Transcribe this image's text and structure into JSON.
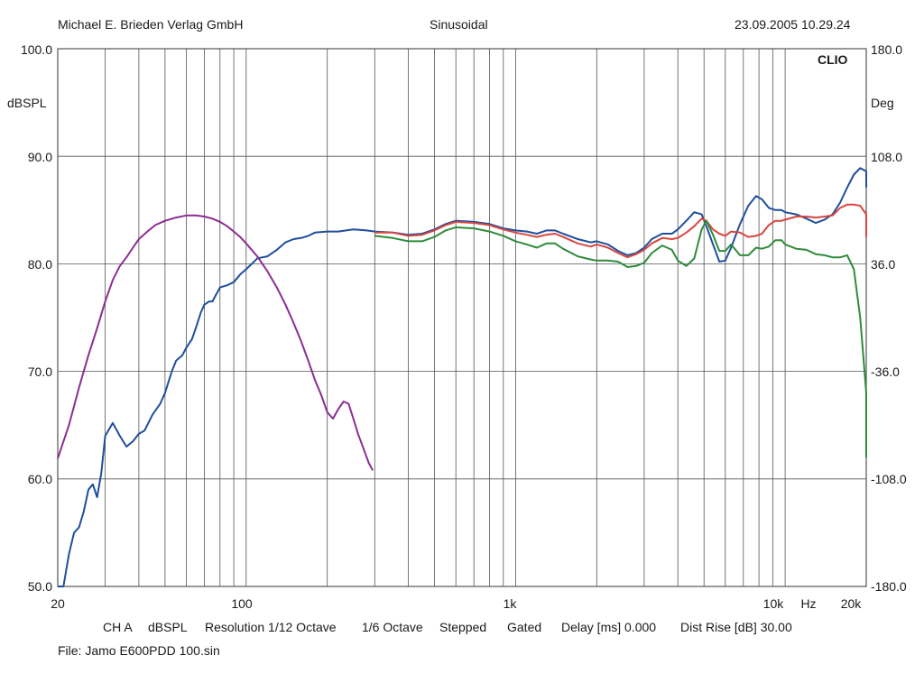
{
  "header": {
    "publisher": "Michael E. Brieden Verlag GmbH",
    "signal": "Sinusoidal",
    "timestamp": "23.09.2005 10.29.24"
  },
  "brand": "CLIO",
  "left_axis": {
    "unit": "dBSPL",
    "ticks": [
      "100.0",
      "90.0",
      "80.0",
      "70.0",
      "60.0",
      "50.0"
    ]
  },
  "right_axis": {
    "unit": "Deg",
    "ticks": [
      "180.0",
      "108.0",
      "36.0",
      "-36.0",
      "-108.0",
      "-180.0"
    ]
  },
  "x_axis": {
    "ticks": [
      "20",
      "100",
      "1k",
      "10k",
      "Hz",
      "20k"
    ]
  },
  "footer": {
    "channel": "CH A",
    "unit": "dBSPL",
    "resolution": "Resolution 1/12 Octave",
    "smoothing": "1/6 Octave",
    "mode": "Stepped",
    "gated": "Gated",
    "delay": "Delay [ms] 0.000",
    "dist_rise": "Dist Rise [dB] 30.00",
    "file": "File: Jamo E600PDD 100.sin"
  },
  "chart_data": {
    "type": "line",
    "x_scale": "log",
    "xlim": [
      20,
      20000
    ],
    "ylim": [
      50,
      100
    ],
    "y2lim": [
      -180,
      180
    ],
    "grid": true,
    "series": [
      {
        "color": "#1f4e9c",
        "points": [
          [
            20,
            48
          ],
          [
            21,
            50
          ],
          [
            22,
            53
          ],
          [
            23,
            55
          ],
          [
            24,
            55.5
          ],
          [
            25,
            57
          ],
          [
            26,
            59
          ],
          [
            27,
            59.5
          ],
          [
            28,
            58.3
          ],
          [
            29,
            60.5
          ],
          [
            30,
            64
          ],
          [
            32,
            65.2
          ],
          [
            34,
            64
          ],
          [
            36,
            63
          ],
          [
            38,
            63.5
          ],
          [
            40,
            64.2
          ],
          [
            42,
            64.5
          ],
          [
            45,
            66
          ],
          [
            48,
            67
          ],
          [
            50,
            68
          ],
          [
            53,
            70
          ],
          [
            55,
            71
          ],
          [
            58,
            71.5
          ],
          [
            60,
            72.2
          ],
          [
            63,
            73
          ],
          [
            65,
            74
          ],
          [
            68,
            75.5
          ],
          [
            70,
            76.2
          ],
          [
            73,
            76.5
          ],
          [
            75,
            76.5
          ],
          [
            78,
            77.3
          ],
          [
            80,
            77.8
          ],
          [
            85,
            78
          ],
          [
            90,
            78.3
          ],
          [
            95,
            79
          ],
          [
            100,
            79.5
          ],
          [
            105,
            80
          ],
          [
            110,
            80.5
          ],
          [
            115,
            80.6
          ],
          [
            120,
            80.7
          ],
          [
            130,
            81.3
          ],
          [
            140,
            82
          ],
          [
            150,
            82.3
          ],
          [
            160,
            82.4
          ],
          [
            170,
            82.6
          ],
          [
            180,
            82.9
          ],
          [
            200,
            83
          ],
          [
            220,
            83
          ],
          [
            250,
            83.2
          ],
          [
            280,
            83.1
          ],
          [
            300,
            83.0
          ],
          [
            350,
            82.9
          ],
          [
            400,
            82.7
          ],
          [
            450,
            82.8
          ],
          [
            500,
            83.2
          ],
          [
            550,
            83.7
          ],
          [
            600,
            84.0
          ],
          [
            700,
            83.9
          ],
          [
            800,
            83.7
          ],
          [
            900,
            83.3
          ],
          [
            1000,
            83.1
          ],
          [
            1100,
            83.0
          ],
          [
            1200,
            82.8
          ],
          [
            1300,
            83.1
          ],
          [
            1400,
            83.1
          ],
          [
            1500,
            82.8
          ],
          [
            1700,
            82.3
          ],
          [
            1900,
            82.0
          ],
          [
            2000,
            82.1
          ],
          [
            2200,
            81.8
          ],
          [
            2400,
            81.2
          ],
          [
            2600,
            80.8
          ],
          [
            2800,
            81.0
          ],
          [
            3000,
            81.5
          ],
          [
            3200,
            82.3
          ],
          [
            3500,
            82.8
          ],
          [
            3800,
            82.8
          ],
          [
            4000,
            83.2
          ],
          [
            4300,
            84.0
          ],
          [
            4600,
            84.8
          ],
          [
            4900,
            84.6
          ],
          [
            5100,
            83.5
          ],
          [
            5400,
            81.8
          ],
          [
            5700,
            80.2
          ],
          [
            6000,
            80.3
          ],
          [
            6300,
            81.5
          ],
          [
            6800,
            83.7
          ],
          [
            7300,
            85.4
          ],
          [
            7800,
            86.3
          ],
          [
            8200,
            86.0
          ],
          [
            8700,
            85.2
          ],
          [
            9200,
            85.0
          ],
          [
            9700,
            85.0
          ],
          [
            10000,
            84.8
          ],
          [
            11000,
            84.6
          ],
          [
            12000,
            84.2
          ],
          [
            13000,
            83.8
          ],
          [
            14000,
            84.1
          ],
          [
            15000,
            84.6
          ],
          [
            16000,
            85.7
          ],
          [
            17000,
            87.1
          ],
          [
            18000,
            88.3
          ],
          [
            19000,
            88.9
          ],
          [
            20000,
            88.6
          ],
          [
            21000,
            87.8
          ],
          [
            22000,
            87.1
          ]
        ]
      },
      {
        "color": "#d9463f",
        "points": [
          [
            300,
            82.9
          ],
          [
            350,
            82.9
          ],
          [
            400,
            82.6
          ],
          [
            450,
            82.7
          ],
          [
            500,
            83.1
          ],
          [
            550,
            83.6
          ],
          [
            600,
            83.9
          ],
          [
            700,
            83.8
          ],
          [
            800,
            83.6
          ],
          [
            900,
            83.2
          ],
          [
            1000,
            82.9
          ],
          [
            1100,
            82.7
          ],
          [
            1200,
            82.5
          ],
          [
            1300,
            82.7
          ],
          [
            1400,
            82.8
          ],
          [
            1500,
            82.5
          ],
          [
            1700,
            81.9
          ],
          [
            1900,
            81.6
          ],
          [
            2000,
            81.8
          ],
          [
            2200,
            81.5
          ],
          [
            2400,
            81.0
          ],
          [
            2600,
            80.6
          ],
          [
            2800,
            80.9
          ],
          [
            3000,
            81.3
          ],
          [
            3200,
            81.9
          ],
          [
            3500,
            82.4
          ],
          [
            3800,
            82.3
          ],
          [
            4000,
            82.4
          ],
          [
            4300,
            82.9
          ],
          [
            4600,
            83.5
          ],
          [
            4900,
            84.2
          ],
          [
            5100,
            84.0
          ],
          [
            5400,
            83.2
          ],
          [
            5700,
            82.8
          ],
          [
            6000,
            82.6
          ],
          [
            6300,
            83.0
          ],
          [
            6800,
            82.9
          ],
          [
            7300,
            82.5
          ],
          [
            7800,
            82.6
          ],
          [
            8200,
            82.8
          ],
          [
            8700,
            83.6
          ],
          [
            9200,
            84.0
          ],
          [
            9700,
            84.0
          ],
          [
            10000,
            84.1
          ],
          [
            11000,
            84.4
          ],
          [
            12000,
            84.4
          ],
          [
            13000,
            84.3
          ],
          [
            14000,
            84.4
          ],
          [
            15000,
            84.5
          ],
          [
            16000,
            85.2
          ],
          [
            17000,
            85.5
          ],
          [
            18000,
            85.5
          ],
          [
            19000,
            85.4
          ],
          [
            20000,
            84.6
          ],
          [
            21000,
            83.6
          ],
          [
            22000,
            82.5
          ]
        ]
      },
      {
        "color": "#2e8b3a",
        "points": [
          [
            300,
            82.6
          ],
          [
            350,
            82.4
          ],
          [
            400,
            82.1
          ],
          [
            450,
            82.1
          ],
          [
            500,
            82.5
          ],
          [
            550,
            83.1
          ],
          [
            600,
            83.4
          ],
          [
            700,
            83.3
          ],
          [
            800,
            83.0
          ],
          [
            900,
            82.6
          ],
          [
            1000,
            82.1
          ],
          [
            1100,
            81.8
          ],
          [
            1200,
            81.5
          ],
          [
            1300,
            81.9
          ],
          [
            1400,
            81.9
          ],
          [
            1500,
            81.4
          ],
          [
            1700,
            80.7
          ],
          [
            1900,
            80.4
          ],
          [
            2000,
            80.3
          ],
          [
            2200,
            80.3
          ],
          [
            2400,
            80.2
          ],
          [
            2600,
            79.7
          ],
          [
            2800,
            79.8
          ],
          [
            3000,
            80.1
          ],
          [
            3200,
            81.0
          ],
          [
            3500,
            81.7
          ],
          [
            3800,
            81.3
          ],
          [
            4000,
            80.3
          ],
          [
            4300,
            79.8
          ],
          [
            4600,
            80.5
          ],
          [
            4900,
            83.2
          ],
          [
            5100,
            84.0
          ],
          [
            5400,
            82.7
          ],
          [
            5700,
            81.2
          ],
          [
            6000,
            81.2
          ],
          [
            6300,
            81.8
          ],
          [
            6800,
            80.8
          ],
          [
            7300,
            80.8
          ],
          [
            7800,
            81.5
          ],
          [
            8200,
            81.4
          ],
          [
            8700,
            81.6
          ],
          [
            9200,
            82.2
          ],
          [
            9700,
            82.2
          ],
          [
            10000,
            81.8
          ],
          [
            11000,
            81.4
          ],
          [
            12000,
            81.3
          ],
          [
            13000,
            80.9
          ],
          [
            14000,
            80.8
          ],
          [
            15000,
            80.6
          ],
          [
            16000,
            80.6
          ],
          [
            17000,
            80.8
          ],
          [
            18000,
            79.5
          ],
          [
            19000,
            75.0
          ],
          [
            20000,
            68.0
          ],
          [
            21000,
            62.5
          ],
          [
            22000,
            62.0
          ]
        ]
      },
      {
        "color": "#8b2d90",
        "points": [
          [
            20,
            61.9
          ],
          [
            22,
            65
          ],
          [
            24,
            68.5
          ],
          [
            26,
            71.5
          ],
          [
            28,
            74
          ],
          [
            30,
            76.5
          ],
          [
            32,
            78.5
          ],
          [
            34,
            79.8
          ],
          [
            36,
            80.6
          ],
          [
            38,
            81.5
          ],
          [
            40,
            82.3
          ],
          [
            43,
            83.0
          ],
          [
            46,
            83.6
          ],
          [
            50,
            84.0
          ],
          [
            55,
            84.3
          ],
          [
            60,
            84.5
          ],
          [
            65,
            84.5
          ],
          [
            70,
            84.4
          ],
          [
            75,
            84.2
          ],
          [
            80,
            83.9
          ],
          [
            85,
            83.5
          ],
          [
            90,
            83.0
          ],
          [
            95,
            82.5
          ],
          [
            100,
            81.9
          ],
          [
            110,
            80.7
          ],
          [
            120,
            79.3
          ],
          [
            130,
            77.8
          ],
          [
            140,
            76.2
          ],
          [
            150,
            74.5
          ],
          [
            160,
            72.8
          ],
          [
            170,
            71.0
          ],
          [
            180,
            69.2
          ],
          [
            190,
            67.8
          ],
          [
            200,
            66.2
          ],
          [
            210,
            65.6
          ],
          [
            220,
            66.5
          ],
          [
            230,
            67.2
          ],
          [
            240,
            67.0
          ],
          [
            250,
            65.6
          ],
          [
            260,
            64.2
          ],
          [
            270,
            63.1
          ],
          [
            285,
            61.5
          ],
          [
            295,
            60.8
          ]
        ]
      }
    ]
  }
}
